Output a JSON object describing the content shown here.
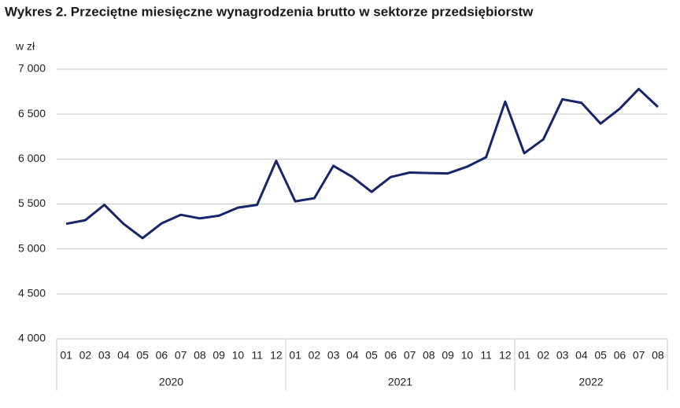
{
  "chart_data": {
    "type": "line",
    "title": "Wykres 2. Przeciętne miesięczne wynagrodzenia brutto w sektorze przedsiębiorstw",
    "y_label": "w zł",
    "groups": [
      "2020",
      "2021",
      "2022"
    ],
    "categories": [
      [
        "01",
        "02",
        "03",
        "04",
        "05",
        "06",
        "07",
        "08",
        "09",
        "10",
        "11",
        "12"
      ],
      [
        "01",
        "02",
        "03",
        "04",
        "05",
        "06",
        "07",
        "08",
        "09",
        "10",
        "11",
        "12"
      ],
      [
        "01",
        "02",
        "03",
        "04",
        "05",
        "06",
        "07",
        "08"
      ]
    ],
    "values": [
      [
        5280,
        5320,
        5490,
        5280,
        5120,
        5285,
        5380,
        5340,
        5370,
        5460,
        5490,
        5980
      ],
      [
        5530,
        5565,
        5925,
        5800,
        5635,
        5800,
        5850,
        5845,
        5840,
        5915,
        6020,
        6640
      ],
      [
        6065,
        6220,
        6665,
        6625,
        6395,
        6560,
        6780,
        6580
      ]
    ],
    "color": "#17256b",
    "ylim": [
      4000,
      7000
    ],
    "yticks": [
      {
        "value": 4000,
        "label": "4 000"
      },
      {
        "value": 4500,
        "label": "4 500"
      },
      {
        "value": 5000,
        "label": "5 000"
      },
      {
        "value": 5500,
        "label": "5 500"
      },
      {
        "value": 6000,
        "label": "6 000"
      },
      {
        "value": 6500,
        "label": "6 500"
      },
      {
        "value": 7000,
        "label": "7 000"
      }
    ],
    "grid": true
  }
}
